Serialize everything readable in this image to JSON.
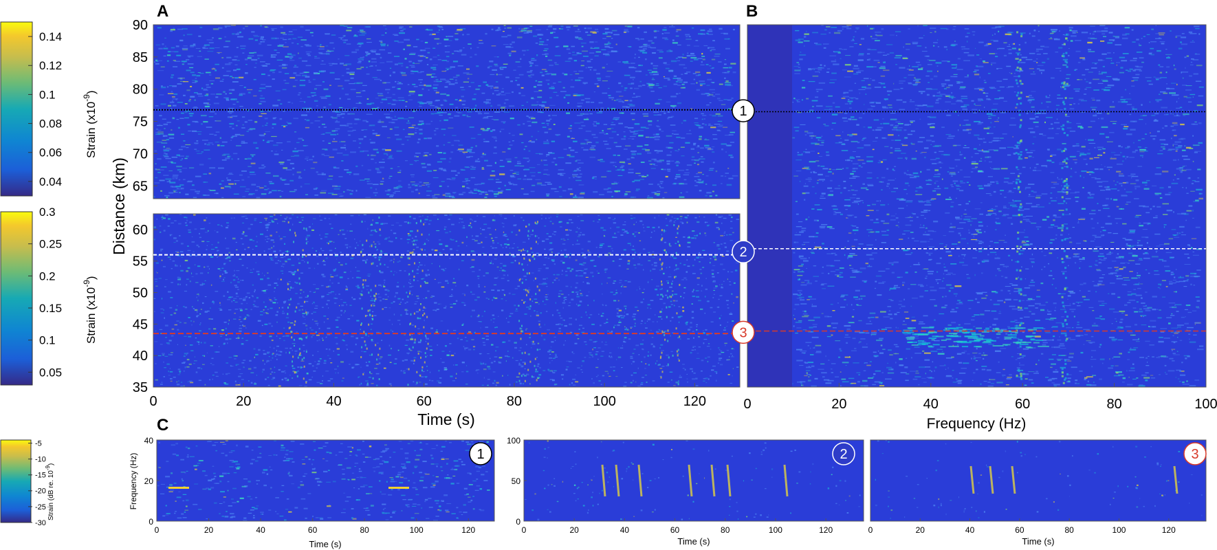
{
  "panel_labels": {
    "a": "A",
    "b": "B",
    "c": "C"
  },
  "colorbars": [
    {
      "ticks": [
        "0.14",
        "0.12",
        "0.1",
        "0.08",
        "0.06",
        "0.04"
      ],
      "values": [
        0.14,
        0.12,
        0.1,
        0.08,
        0.06,
        0.04
      ],
      "range": [
        0.03,
        0.15
      ],
      "label": "Strain (x10",
      "exp": "-9",
      "label_close": ")"
    },
    {
      "ticks": [
        "0.3",
        "0.25",
        "0.2",
        "0.15",
        "0.1",
        "0.05"
      ],
      "values": [
        0.3,
        0.25,
        0.2,
        0.15,
        0.1,
        0.05
      ],
      "range": [
        0.03,
        0.3
      ],
      "label": "Strain (x10",
      "exp": "-9",
      "label_close": ")"
    },
    {
      "ticks": [
        "-5",
        "-10",
        "-15",
        "-20",
        "-25",
        "-30"
      ],
      "values": [
        -5,
        -10,
        -15,
        -20,
        -25,
        -30
      ],
      "range": [
        -30,
        -4
      ],
      "label": "Strain (dB re. 10",
      "exp": "-9",
      "label_close": ")"
    }
  ],
  "markers": [
    {
      "label": "1",
      "distance_km": 76.8,
      "style": "black-dotted"
    },
    {
      "label": "2",
      "distance_km": 56.0,
      "style": "white-dashed"
    },
    {
      "label": "3",
      "distance_km": 43.5,
      "style": "red-dashed"
    }
  ],
  "chart_data": [
    {
      "id": "A-top",
      "type": "heatmap",
      "xlabel": "",
      "ylabel": "",
      "xlim": [
        0,
        130
      ],
      "ylim": [
        63,
        90
      ],
      "yticks": [
        65,
        70,
        75,
        80,
        85,
        90
      ],
      "xticks": [],
      "colormap": "parula"
    },
    {
      "id": "A-bottom",
      "type": "heatmap",
      "xlabel": "Time (s)",
      "ylabel": "Distance (km)",
      "xlim": [
        0,
        130
      ],
      "ylim": [
        35,
        62.5
      ],
      "xticks": [
        0,
        20,
        40,
        60,
        80,
        100,
        120
      ],
      "yticks": [
        35,
        40,
        45,
        50,
        55,
        60
      ],
      "colormap": "parula"
    },
    {
      "id": "B",
      "type": "heatmap",
      "xlabel": "Frequency (Hz)",
      "ylabel": "",
      "xlim": [
        0,
        100
      ],
      "ylim": [
        35,
        90
      ],
      "xticks": [
        0,
        20,
        40,
        60,
        80,
        100
      ],
      "yticks": [],
      "colormap": "parula"
    },
    {
      "id": "C1",
      "type": "heatmap",
      "marker": "1",
      "xlabel": "Time (s)",
      "ylabel": "Frequency (Hz)",
      "xlim": [
        0,
        130
      ],
      "ylim": [
        0,
        40
      ],
      "xticks": [
        0,
        20,
        40,
        60,
        80,
        100,
        120
      ],
      "yticks": [
        0,
        20,
        40
      ],
      "colormap": "parula"
    },
    {
      "id": "C2",
      "type": "heatmap",
      "marker": "2",
      "xlabel": "Time (s)",
      "ylabel": "",
      "xlim": [
        0,
        135
      ],
      "ylim": [
        0,
        100
      ],
      "xticks": [
        0,
        20,
        40,
        60,
        80,
        100,
        120
      ],
      "yticks": [
        0,
        50,
        100
      ],
      "colormap": "parula"
    },
    {
      "id": "C3",
      "type": "heatmap",
      "marker": "3",
      "xlabel": "Time (s)",
      "ylabel": "",
      "xlim": [
        0,
        135
      ],
      "ylim": [
        0,
        100
      ],
      "xticks": [
        0,
        20,
        40,
        60,
        80,
        100,
        120
      ],
      "yticks": [],
      "colormap": "parula"
    }
  ]
}
